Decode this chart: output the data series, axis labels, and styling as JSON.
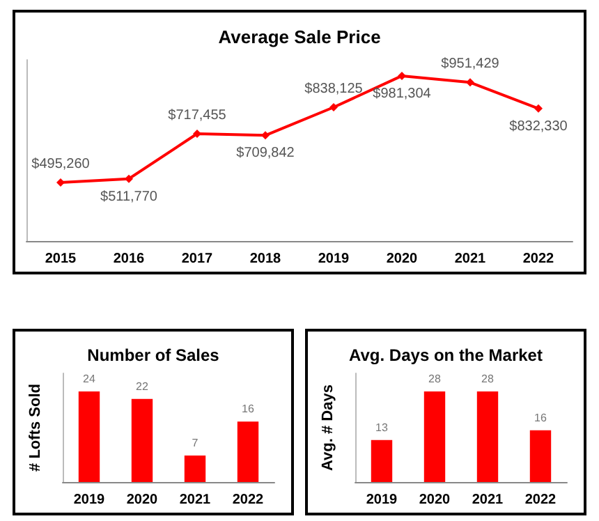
{
  "chart_data": [
    {
      "type": "line",
      "title": "Average Sale Price",
      "categories": [
        "2015",
        "2016",
        "2017",
        "2018",
        "2019",
        "2020",
        "2021",
        "2022"
      ],
      "tick_labels": "x",
      "marker": "diamond",
      "line_style": "solid",
      "grid": false,
      "series": [
        {
          "color": "#ff0000",
          "values": [
            495260,
            511770,
            717455,
            709842,
            838125,
            981304,
            951429,
            832330
          ],
          "value_labels": [
            "$495,260",
            "$511,770",
            "$717,455",
            "$709,842",
            "$838,125",
            "$981,304",
            "$951,429",
            "$832,330"
          ]
        }
      ]
    },
    {
      "type": "bar",
      "title": "Number of Sales",
      "ylabel": "# Lofts Sold",
      "categories": [
        "2019",
        "2020",
        "2021",
        "2022"
      ],
      "tick_labels": "x",
      "data_labels": true,
      "grid": false,
      "series": [
        {
          "color": "#ff0000",
          "values": [
            24,
            22,
            7,
            16
          ]
        }
      ]
    },
    {
      "type": "bar",
      "title": "Avg. Days on the Market",
      "ylabel": "Avg. # Days",
      "categories": [
        "2019",
        "2020",
        "2021",
        "2022"
      ],
      "tick_labels": "x",
      "data_labels": true,
      "grid": false,
      "series": [
        {
          "color": "#ff0000",
          "values": [
            13,
            28,
            28,
            16
          ]
        }
      ]
    }
  ]
}
